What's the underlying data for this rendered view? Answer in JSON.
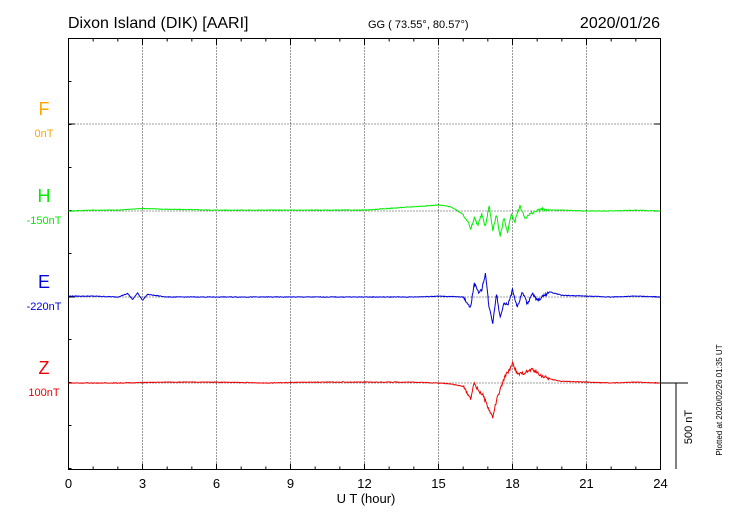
{
  "header": {
    "station": "Dixon Island (DIK)  [AARI]",
    "coords": "GG ( 73.55°,  80.57°)",
    "date": "2020/01/26"
  },
  "footer": {
    "plotted": "Plotted at 2020/02/26 01:35 UT"
  },
  "chart_data": {
    "type": "line",
    "xlabel": "U T (hour)",
    "xlim": [
      0,
      24
    ],
    "x_ticks": [
      0,
      3,
      6,
      9,
      12,
      15,
      18,
      21,
      24
    ],
    "x_tick_labels": [
      "0",
      "3",
      "6",
      "9",
      "12",
      "15",
      "18",
      "21",
      "24"
    ],
    "scale_bar": {
      "label": "500 nT",
      "value_nT": 500
    },
    "y_unit": "nT",
    "series": [
      {
        "name": "F",
        "baseline_label": "0nT",
        "color": "#ffa500",
        "x": [],
        "y": []
      },
      {
        "name": "H",
        "baseline_label": "-150nT",
        "color": "#00ee00",
        "x": [
          0,
          1,
          2,
          3,
          4,
          6,
          8,
          10,
          12,
          13,
          13.5,
          14,
          14.5,
          15,
          15.5,
          16,
          16.2,
          16.3,
          16.45,
          16.6,
          16.75,
          16.9,
          17.05,
          17.2,
          17.35,
          17.5,
          17.65,
          17.8,
          17.95,
          18.1,
          18.3,
          18.5,
          18.8,
          19.2,
          19.6,
          20,
          21,
          22,
          23,
          24
        ],
        "y": [
          0,
          5,
          5,
          15,
          10,
          5,
          5,
          5,
          5,
          15,
          20,
          25,
          30,
          35,
          25,
          -20,
          -60,
          -110,
          -40,
          -80,
          -20,
          -90,
          30,
          -110,
          -20,
          -150,
          -40,
          -120,
          -20,
          -60,
          30,
          -40,
          -10,
          10,
          5,
          5,
          0,
          0,
          5,
          0
        ]
      },
      {
        "name": "E",
        "baseline_label": "-220nT",
        "color": "#0000dd",
        "x": [
          0,
          1,
          2,
          2.4,
          2.6,
          2.8,
          3,
          3.2,
          4,
          6,
          8,
          10,
          12,
          14,
          15,
          16,
          16.3,
          16.45,
          16.6,
          16.75,
          16.9,
          17.05,
          17.2,
          17.35,
          17.5,
          17.65,
          17.8,
          18,
          18.2,
          18.4,
          18.6,
          18.8,
          19,
          19.5,
          20,
          21,
          22,
          23,
          24
        ],
        "y": [
          5,
          5,
          0,
          20,
          -15,
          25,
          -20,
          15,
          0,
          0,
          0,
          0,
          0,
          0,
          5,
          0,
          -60,
          80,
          30,
          40,
          140,
          -60,
          -150,
          20,
          -120,
          -30,
          -50,
          40,
          -60,
          30,
          -40,
          20,
          -20,
          30,
          10,
          5,
          0,
          5,
          0
        ]
      },
      {
        "name": "Z",
        "baseline_label": "100nT",
        "color": "#ee0000",
        "x": [
          0,
          2,
          4,
          6,
          8,
          10,
          12,
          14,
          15,
          15.5,
          16,
          16.3,
          16.45,
          16.6,
          16.8,
          17,
          17.2,
          17.35,
          17.5,
          17.7,
          17.9,
          18,
          18.2,
          18.5,
          18.8,
          19.2,
          19.6,
          20,
          21,
          22,
          23,
          24
        ],
        "y": [
          0,
          0,
          5,
          5,
          0,
          5,
          5,
          5,
          0,
          -5,
          -20,
          -90,
          0,
          -40,
          -70,
          -140,
          -200,
          -100,
          -40,
          40,
          80,
          120,
          50,
          60,
          80,
          40,
          20,
          10,
          5,
          0,
          5,
          0
        ]
      }
    ]
  }
}
